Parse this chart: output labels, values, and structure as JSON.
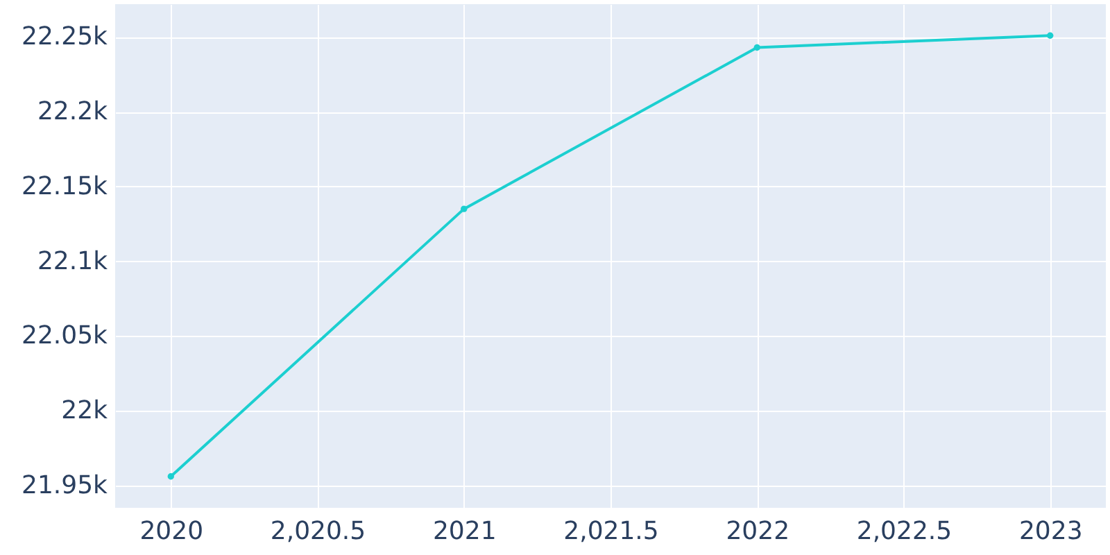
{
  "chart_data": {
    "type": "line",
    "x": [
      2020,
      2021,
      2022,
      2023
    ],
    "series": [
      {
        "color": "#1ccfd0",
        "values": [
          21956,
          22135,
          22243,
          22251
        ]
      }
    ],
    "xlim": [
      2019.81,
      2023.19
    ],
    "ylim": [
      21935,
      22272
    ],
    "xticks": [
      {
        "value": 2020,
        "label": "2020"
      },
      {
        "value": 2020.5,
        "label": "2,020.5"
      },
      {
        "value": 2021,
        "label": "2021"
      },
      {
        "value": 2021.5,
        "label": "2,021.5"
      },
      {
        "value": 2022,
        "label": "2022"
      },
      {
        "value": 2022.5,
        "label": "2,022.5"
      },
      {
        "value": 2023,
        "label": "2023"
      }
    ],
    "yticks": [
      {
        "value": 21950,
        "label": "21.95k"
      },
      {
        "value": 22000,
        "label": "22k"
      },
      {
        "value": 22050,
        "label": "22.05k"
      },
      {
        "value": 22100,
        "label": "22.1k"
      },
      {
        "value": 22150,
        "label": "22.15k"
      },
      {
        "value": 22200,
        "label": "22.2k"
      },
      {
        "value": 22250,
        "label": "22.25k"
      }
    ],
    "grid": true,
    "marker": "circle"
  }
}
